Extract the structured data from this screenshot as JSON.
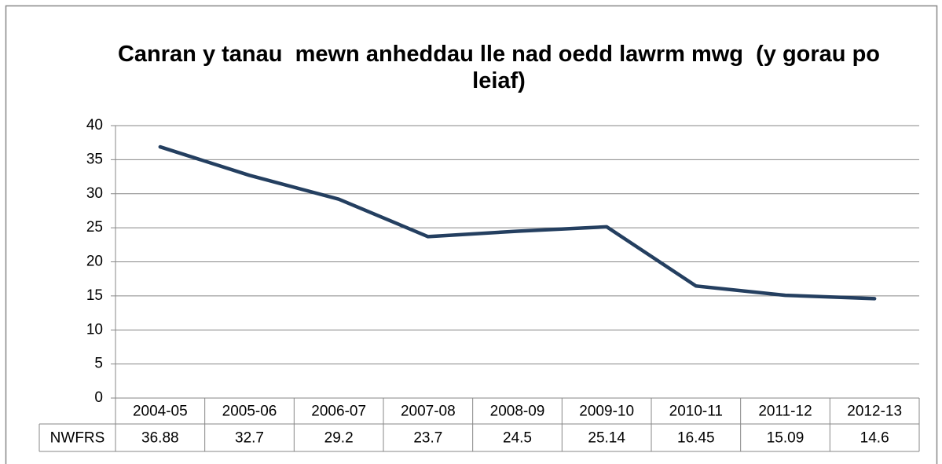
{
  "chart_data": {
    "type": "line",
    "title": "Canran y tanau  mewn anheddau lle nad oedd lawrm mwg  (y gorau po leiaf)",
    "categories": [
      "2004-05",
      "2005-06",
      "2006-07",
      "2007-08",
      "2008-09",
      "2009-10",
      "2010-11",
      "2011-12",
      "2012-13"
    ],
    "series": [
      {
        "name": "NWFRS",
        "color": "#243f60",
        "values": [
          36.88,
          32.7,
          29.2,
          23.7,
          24.5,
          25.14,
          16.45,
          15.09,
          14.6
        ]
      }
    ],
    "ylim": [
      0,
      40
    ],
    "yticks": [
      0,
      5,
      10,
      15,
      20,
      25,
      30,
      35,
      40
    ],
    "grid": true,
    "data_table": true
  }
}
